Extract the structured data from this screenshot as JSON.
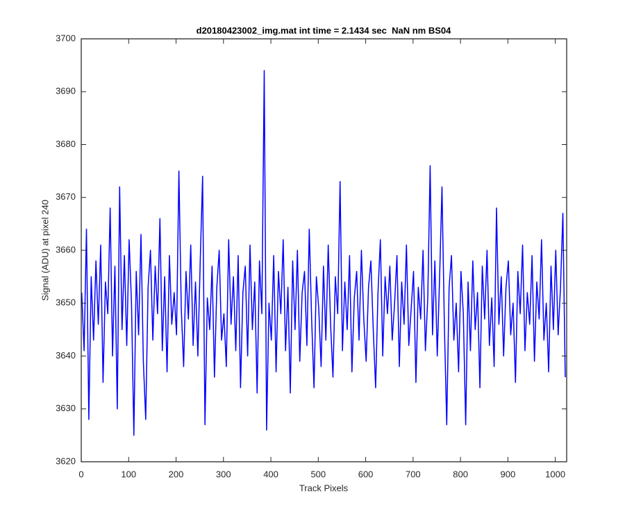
{
  "chart_data": {
    "type": "line",
    "title": "d20180423002_img.mat int time = 2.1434 sec  NaN nm BS04",
    "xlabel": "Track Pixels",
    "ylabel": "Signal (ADU) at pixel 240",
    "xlim": [
      0,
      1024
    ],
    "ylim": [
      3620,
      3700
    ],
    "xticks": [
      0,
      100,
      200,
      300,
      400,
      500,
      600,
      700,
      800,
      900,
      1000
    ],
    "yticks": [
      3620,
      3630,
      3640,
      3650,
      3660,
      3670,
      3680,
      3690,
      3700
    ],
    "color": "#0000ff",
    "grid": false,
    "x": [
      1,
      6,
      11,
      16,
      21,
      26,
      31,
      36,
      41,
      46,
      51,
      56,
      61,
      66,
      71,
      76,
      81,
      86,
      91,
      96,
      101,
      106,
      111,
      116,
      121,
      126,
      131,
      136,
      141,
      146,
      151,
      156,
      161,
      166,
      171,
      176,
      181,
      186,
      191,
      196,
      201,
      206,
      211,
      216,
      221,
      226,
      231,
      236,
      241,
      246,
      251,
      256,
      261,
      266,
      271,
      276,
      281,
      286,
      291,
      296,
      301,
      306,
      311,
      316,
      321,
      326,
      331,
      336,
      341,
      346,
      351,
      356,
      361,
      366,
      371,
      376,
      381,
      386,
      391,
      396,
      401,
      406,
      411,
      416,
      421,
      426,
      431,
      436,
      441,
      446,
      451,
      456,
      461,
      466,
      471,
      476,
      481,
      486,
      491,
      496,
      501,
      506,
      511,
      516,
      521,
      526,
      531,
      536,
      541,
      546,
      551,
      556,
      561,
      566,
      571,
      576,
      581,
      586,
      591,
      596,
      601,
      606,
      611,
      616,
      621,
      626,
      631,
      636,
      641,
      646,
      651,
      656,
      661,
      666,
      671,
      676,
      681,
      686,
      691,
      696,
      701,
      706,
      711,
      716,
      721,
      726,
      731,
      736,
      741,
      746,
      751,
      756,
      761,
      766,
      771,
      776,
      781,
      786,
      791,
      796,
      801,
      806,
      811,
      816,
      821,
      826,
      831,
      836,
      841,
      846,
      851,
      856,
      861,
      866,
      871,
      876,
      881,
      886,
      891,
      896,
      901,
      906,
      911,
      916,
      921,
      926,
      931,
      936,
      941,
      946,
      951,
      956,
      961,
      966,
      971,
      976,
      981,
      986,
      991,
      996,
      1001,
      1006,
      1011,
      1016,
      1021
    ],
    "values": [
      3652,
      3641,
      3664,
      3628,
      3655,
      3643,
      3658,
      3646,
      3661,
      3635,
      3654,
      3648,
      3668,
      3640,
      3657,
      3630,
      3672,
      3645,
      3659,
      3642,
      3662,
      3650,
      3625,
      3656,
      3644,
      3663,
      3639,
      3628,
      3653,
      3660,
      3643,
      3657,
      3648,
      3666,
      3641,
      3655,
      3637,
      3659,
      3646,
      3652,
      3644,
      3675,
      3649,
      3638,
      3656,
      3647,
      3661,
      3642,
      3654,
      3640,
      3658,
      3674,
      3627,
      3651,
      3645,
      3657,
      3636,
      3653,
      3660,
      3643,
      3648,
      3638,
      3662,
      3646,
      3655,
      3641,
      3659,
      3634,
      3652,
      3657,
      3640,
      3661,
      3645,
      3654,
      3633,
      3658,
      3648,
      3694,
      3626,
      3650,
      3643,
      3659,
      3637,
      3656,
      3648,
      3662,
      3641,
      3653,
      3633,
      3658,
      3645,
      3660,
      3639,
      3652,
      3656,
      3642,
      3664,
      3647,
      3634,
      3655,
      3649,
      3638,
      3657,
      3643,
      3661,
      3646,
      3636,
      3655,
      3648,
      3673,
      3641,
      3654,
      3645,
      3659,
      3637,
      3651,
      3656,
      3643,
      3660,
      3647,
      3639,
      3653,
      3658,
      3645,
      3634,
      3652,
      3662,
      3640,
      3655,
      3648,
      3657,
      3643,
      3650,
      3659,
      3638,
      3654,
      3646,
      3661,
      3642,
      3649,
      3656,
      3635,
      3653,
      3647,
      3660,
      3641,
      3651,
      3676,
      3644,
      3658,
      3640,
      3655,
      3672,
      3646,
      3627,
      3653,
      3659,
      3643,
      3650,
      3637,
      3656,
      3648,
      3627,
      3654,
      3641,
      3658,
      3645,
      3652,
      3634,
      3657,
      3647,
      3660,
      3642,
      3651,
      3638,
      3668,
      3646,
      3655,
      3640,
      3653,
      3658,
      3644,
      3650,
      3635,
      3656,
      3648,
      3661,
      3641,
      3652,
      3646,
      3659,
      3639,
      3654,
      3647,
      3662,
      3643,
      3650,
      3637,
      3657,
      3645,
      3660,
      3644,
      3653,
      3667,
      3636
    ]
  }
}
